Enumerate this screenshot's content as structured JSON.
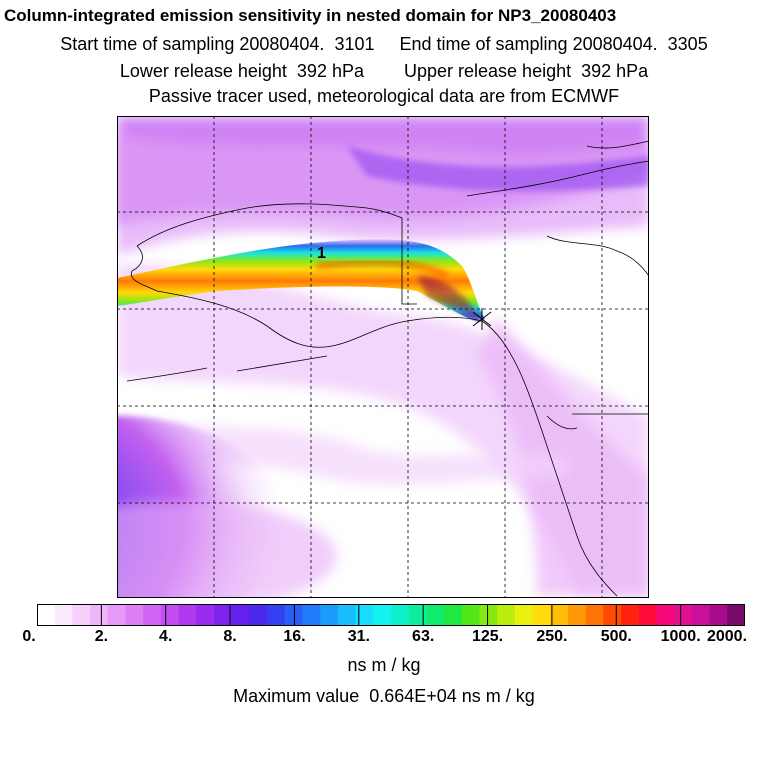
{
  "header": {
    "title": "Column-integrated emission sensitivity in nested domain for NP3_20080403",
    "line2": "Start time of sampling 20080404.  3101     End time of sampling 20080404.  3305",
    "line3": "Lower release height  392 hPa        Upper release height  392 hPa",
    "line4": "Passive tracer used, meteorological data are from ECMWF"
  },
  "map": {
    "plume_marker": "1",
    "colors": {
      "background_haze": "#e9a6f5",
      "haze_strong": "#c04df0",
      "plume_core": "#8b0050",
      "blue_region": "#2f6ee8"
    }
  },
  "colorbar": {
    "labels": [
      "0.",
      "2.",
      "4.",
      "8.",
      "16.",
      "31.",
      "63.",
      "125.",
      "250.",
      "500.",
      "1000.",
      "2000."
    ],
    "colors": [
      "#ffffff",
      "#fbe9fd",
      "#f5d0fb",
      "#efb5f9",
      "#e79af7",
      "#dd7ff5",
      "#d065f3",
      "#c24df1",
      "#b038ef",
      "#9a2bef",
      "#7e22ee",
      "#6320ef",
      "#4a28f0",
      "#3440f2",
      "#2a5ef5",
      "#207cf8",
      "#1a9cfb",
      "#18bdfd",
      "#1adcfd",
      "#14f2f0",
      "#10f0c8",
      "#10ee9c",
      "#10ea6e",
      "#20e840",
      "#52e818",
      "#86ea10",
      "#bbee0e",
      "#e8f010",
      "#ffdc0a",
      "#ffbd08",
      "#ff9a06",
      "#ff7405",
      "#ff4a06",
      "#ff2310",
      "#ff0a3a",
      "#f5087a",
      "#e0108e",
      "#c8109c",
      "#a80c8c",
      "#7a0a6a"
    ],
    "units": "ns m / kg",
    "max_label": "Maximum value  0.664E+04 ns m / kg"
  }
}
